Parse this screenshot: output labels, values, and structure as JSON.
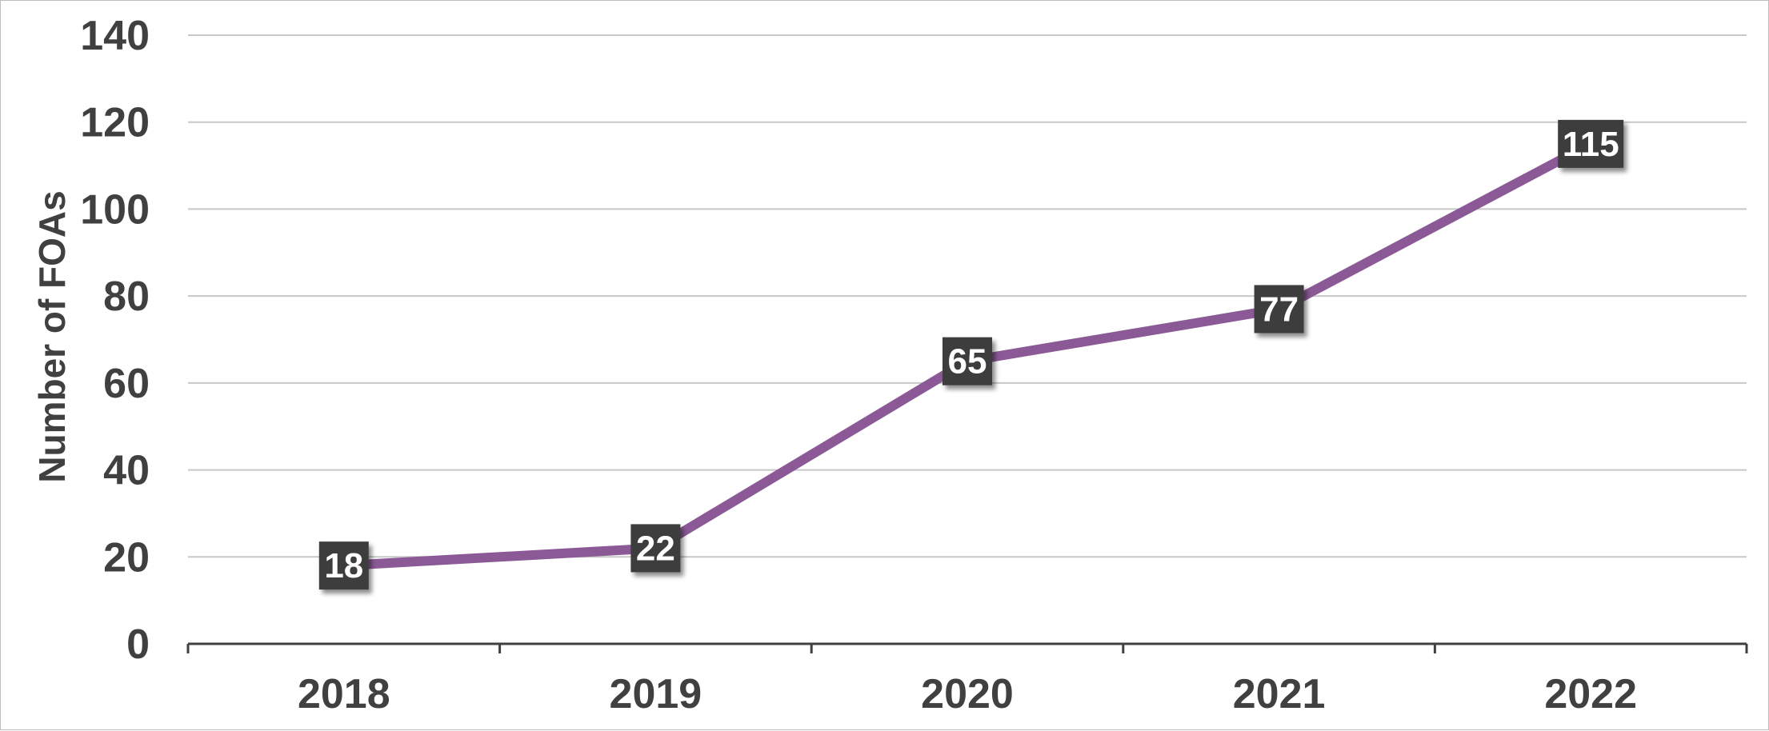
{
  "chart_data": {
    "type": "line",
    "title": "",
    "xlabel": "",
    "ylabel": "Number of FOAs",
    "categories": [
      "2018",
      "2019",
      "2020",
      "2021",
      "2022"
    ],
    "series": [
      {
        "values": [
          18,
          22,
          65,
          77,
          115
        ],
        "color": "#8b5a96"
      }
    ],
    "ylim": [
      0,
      140
    ],
    "yticks": [
      "0",
      "20",
      "40",
      "60",
      "80",
      "100",
      "120",
      "140"
    ],
    "grid": true,
    "legend": "none",
    "data_labels": true,
    "data_label_box_color": "#3c3c3c",
    "data_label_text_color": "#ffffff",
    "text_color": "#404040",
    "gridline_color": "#c8c8c8"
  }
}
